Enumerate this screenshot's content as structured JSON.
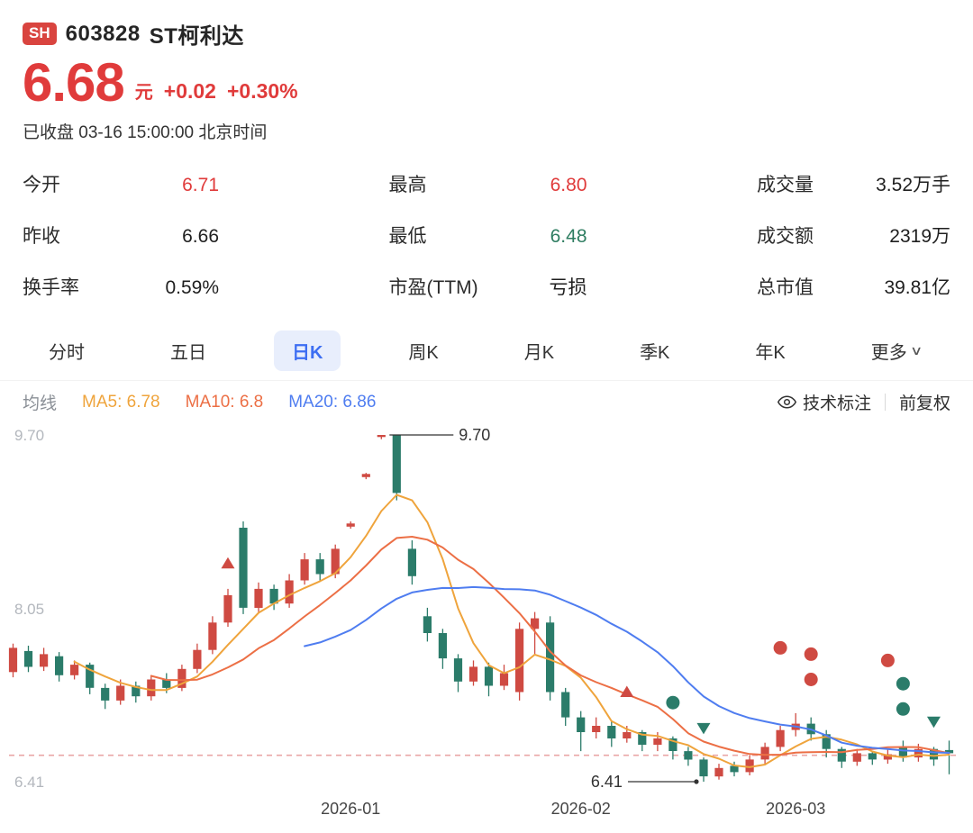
{
  "header": {
    "exchange_badge": "SH",
    "code": "603828",
    "name": "ST柯利达",
    "price": "6.68",
    "currency": "元",
    "change": "+0.02",
    "change_pct": "+0.30%",
    "status_line": "已收盘 03-16 15:00:00 北京时间"
  },
  "stats": [
    {
      "label": "今开",
      "value": "6.71",
      "color": "red"
    },
    {
      "label": "最高",
      "value": "6.80",
      "color": "red"
    },
    {
      "label": "成交量",
      "value": "3.52万手",
      "color": "dark"
    },
    {
      "label": "昨收",
      "value": "6.66",
      "color": "dark"
    },
    {
      "label": "最低",
      "value": "6.48",
      "color": "green"
    },
    {
      "label": "成交额",
      "value": "2319万",
      "color": "dark"
    },
    {
      "label": "换手率",
      "value": "0.59%",
      "color": "dark"
    },
    {
      "label": "市盈(TTM)",
      "value": "亏损",
      "color": "dark"
    },
    {
      "label": "总市值",
      "value": "39.81亿",
      "color": "dark"
    }
  ],
  "tabs": [
    {
      "label": "分时"
    },
    {
      "label": "五日"
    },
    {
      "label": "日K"
    },
    {
      "label": "周K"
    },
    {
      "label": "月K"
    },
    {
      "label": "季K"
    },
    {
      "label": "年K"
    },
    {
      "label": "更多",
      "chevron": "∨"
    }
  ],
  "ma_legend": {
    "prefix": "均线",
    "items": [
      {
        "label": "MA5: 6.78",
        "color": "#efa43c"
      },
      {
        "label": "MA10: 6.8",
        "color": "#ec6f45"
      },
      {
        "label": "MA20: 6.86",
        "color": "#4f7df0"
      }
    ]
  },
  "toolbar": {
    "annotate_label": "技术标注",
    "adjust_label": "前复权"
  },
  "chart_data": {
    "type": "candlestick",
    "title": "603828 ST柯利达 日K",
    "candle_format": [
      "open",
      "close",
      "high",
      "low"
    ],
    "y_range": [
      6.41,
      9.7
    ],
    "prev_close_line": 6.66,
    "up_color": "#cf4a42",
    "down_color": "#2b7c6a",
    "y_axis": [
      {
        "label": "9.70",
        "price": 9.7
      },
      {
        "label": "8.05",
        "price": 8.05
      },
      {
        "label": "6.41",
        "price": 6.41
      }
    ],
    "x_ticks": [
      {
        "label": "2026-01",
        "index": 22
      },
      {
        "label": "2026-02",
        "index": 37
      },
      {
        "label": "2026-03",
        "index": 51
      }
    ],
    "annotations": {
      "high": {
        "index": 24,
        "price": 9.7,
        "label": "9.70"
      },
      "low": {
        "index": 45,
        "price": 6.41,
        "label": "6.41"
      }
    },
    "ma": [
      {
        "period": 5,
        "color": "#efa43c"
      },
      {
        "period": 10,
        "color": "#ec6f45"
      },
      {
        "period": 20,
        "color": "#4f7df0"
      }
    ],
    "markers": [
      {
        "index": 14,
        "shape": "triangle-up",
        "color": "#cf4a42",
        "price": 8.48
      },
      {
        "index": 40,
        "shape": "triangle-up",
        "color": "#cf4a42",
        "price": 7.26
      },
      {
        "index": 43,
        "shape": "circle",
        "color": "#2b7c6a",
        "price": 7.16
      },
      {
        "index": 45,
        "shape": "triangle-down",
        "color": "#2b7c6a",
        "price": 6.92
      },
      {
        "index": 50,
        "shape": "circle",
        "color": "#cf4a42",
        "price": 7.68
      },
      {
        "index": 52,
        "shape": "circle",
        "color": "#cf4a42",
        "price": 7.62
      },
      {
        "index": 52,
        "shape": "circle",
        "color": "#cf4a42",
        "price": 7.38
      },
      {
        "index": 57,
        "shape": "circle",
        "color": "#cf4a42",
        "price": 7.56
      },
      {
        "index": 58,
        "shape": "circle",
        "color": "#2b7c6a",
        "price": 7.34
      },
      {
        "index": 58,
        "shape": "circle",
        "color": "#2b7c6a",
        "price": 7.1
      },
      {
        "index": 60,
        "shape": "triangle-down",
        "color": "#2b7c6a",
        "price": 6.98
      }
    ],
    "candles": [
      [
        7.45,
        7.68,
        7.72,
        7.4
      ],
      [
        7.65,
        7.5,
        7.7,
        7.45
      ],
      [
        7.5,
        7.62,
        7.68,
        7.46
      ],
      [
        7.6,
        7.42,
        7.64,
        7.36
      ],
      [
        7.42,
        7.52,
        7.56,
        7.38
      ],
      [
        7.52,
        7.3,
        7.54,
        7.24
      ],
      [
        7.3,
        7.18,
        7.34,
        7.1
      ],
      [
        7.18,
        7.32,
        7.38,
        7.14
      ],
      [
        7.32,
        7.22,
        7.36,
        7.16
      ],
      [
        7.22,
        7.38,
        7.42,
        7.18
      ],
      [
        7.38,
        7.3,
        7.44,
        7.25
      ],
      [
        7.3,
        7.48,
        7.52,
        7.27
      ],
      [
        7.48,
        7.66,
        7.72,
        7.44
      ],
      [
        7.66,
        7.92,
        7.98,
        7.62
      ],
      [
        7.92,
        8.18,
        8.24,
        7.88
      ],
      [
        8.82,
        8.06,
        8.88,
        8.0
      ],
      [
        8.06,
        8.24,
        8.3,
        8.02
      ],
      [
        8.24,
        8.1,
        8.28,
        8.04
      ],
      [
        8.1,
        8.32,
        8.38,
        8.06
      ],
      [
        8.32,
        8.52,
        8.58,
        8.28
      ],
      [
        8.52,
        8.38,
        8.58,
        8.32
      ],
      [
        8.38,
        8.62,
        8.66,
        8.34
      ],
      [
        8.83,
        8.86,
        8.88,
        8.81
      ],
      [
        9.3,
        9.33,
        9.34,
        9.28
      ],
      [
        9.68,
        9.7,
        9.7,
        9.66
      ],
      [
        9.7,
        9.15,
        9.7,
        9.08
      ],
      [
        8.62,
        8.36,
        8.7,
        8.28
      ],
      [
        7.98,
        7.82,
        8.06,
        7.74
      ],
      [
        7.82,
        7.58,
        7.86,
        7.48
      ],
      [
        7.58,
        7.36,
        7.62,
        7.26
      ],
      [
        7.36,
        7.5,
        7.56,
        7.32
      ],
      [
        7.5,
        7.32,
        7.54,
        7.22
      ],
      [
        7.32,
        7.44,
        7.52,
        7.28
      ],
      [
        7.26,
        7.86,
        7.92,
        7.18
      ],
      [
        7.86,
        7.96,
        8.02,
        7.62
      ],
      [
        7.92,
        7.26,
        7.98,
        7.18
      ],
      [
        7.26,
        7.02,
        7.3,
        6.94
      ],
      [
        7.02,
        6.88,
        7.08,
        6.7
      ],
      [
        6.88,
        6.94,
        7.02,
        6.82
      ],
      [
        6.94,
        6.82,
        6.98,
        6.74
      ],
      [
        6.82,
        6.88,
        6.94,
        6.78
      ],
      [
        6.88,
        6.76,
        6.9,
        6.7
      ],
      [
        6.76,
        6.82,
        6.88,
        6.7
      ],
      [
        6.82,
        6.7,
        6.84,
        6.62
      ],
      [
        6.7,
        6.62,
        6.74,
        6.56
      ],
      [
        6.62,
        6.46,
        6.64,
        6.41
      ],
      [
        6.46,
        6.54,
        6.58,
        6.43
      ],
      [
        6.56,
        6.5,
        6.6,
        6.46
      ],
      [
        6.5,
        6.62,
        6.66,
        6.47
      ],
      [
        6.62,
        6.74,
        6.78,
        6.58
      ],
      [
        6.74,
        6.9,
        6.94,
        6.7
      ],
      [
        6.9,
        6.96,
        7.06,
        6.84
      ],
      [
        6.96,
        6.86,
        7.02,
        6.8
      ],
      [
        6.86,
        6.72,
        6.9,
        6.64
      ],
      [
        6.72,
        6.6,
        6.74,
        6.54
      ],
      [
        6.6,
        6.68,
        6.72,
        6.56
      ],
      [
        6.68,
        6.62,
        6.7,
        6.57
      ],
      [
        6.62,
        6.67,
        6.72,
        6.58
      ],
      [
        6.74,
        6.64,
        6.8,
        6.6
      ],
      [
        6.64,
        6.72,
        6.77,
        6.6
      ],
      [
        6.72,
        6.62,
        6.74,
        6.56
      ],
      [
        6.71,
        6.68,
        6.8,
        6.48
      ]
    ]
  }
}
